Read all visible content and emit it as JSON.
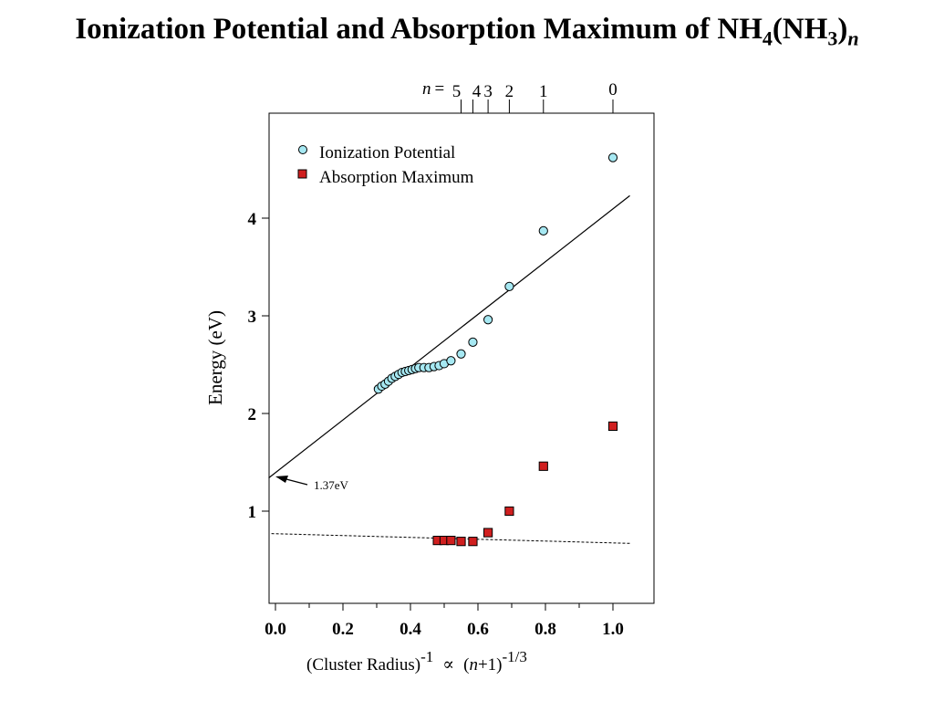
{
  "title": {
    "main": "Ionization Potential and Absorption Maximum of NH",
    "sub1": "4",
    "mid": "(NH",
    "sub2": "3",
    "close": ")",
    "sub3": "n"
  },
  "chart_data": {
    "type": "scatter",
    "x_axis": {
      "label_main": "(Cluster Radius)",
      "label_exp": "-1",
      "label_prop": "∝",
      "label_paren_open": "(",
      "label_n": "n",
      "label_plus": "+1)",
      "label_exp2": "-1/3",
      "lim": [
        -0.02,
        1.12
      ],
      "ticks": [
        0.0,
        0.2,
        0.4,
        0.6,
        0.8,
        1.0
      ],
      "tick_labels": [
        "0.0",
        "0.2",
        "0.4",
        "0.6",
        "0.8",
        "1.0"
      ]
    },
    "y_axis": {
      "label": "Energy (eV)",
      "lim": [
        0.0,
        5.1
      ],
      "ticks": [
        1,
        2,
        3,
        4
      ],
      "tick_labels": [
        "1",
        "2",
        "3",
        "4"
      ]
    },
    "top_axis": {
      "prefix_n": "n",
      "prefix_eq": "=",
      "ticks": [
        {
          "n": "0",
          "x": 1.0
        },
        {
          "n": "1",
          "x": 0.794
        },
        {
          "n": "2",
          "x": 0.693
        },
        {
          "n": "3",
          "x": 0.63
        },
        {
          "n": "4",
          "x": 0.585
        },
        {
          "n": "5",
          "x": 0.55
        }
      ],
      "label_text": "54  3    2      1"
    },
    "series": [
      {
        "name": "Ionization Potential",
        "marker": "circle",
        "color": "#a6e8f2",
        "x": [
          0.305,
          0.315,
          0.325,
          0.335,
          0.345,
          0.355,
          0.365,
          0.375,
          0.385,
          0.395,
          0.405,
          0.415,
          0.425,
          0.44,
          0.455,
          0.47,
          0.485,
          0.5,
          0.52,
          0.55,
          0.585,
          0.63,
          0.693,
          0.794,
          1.0
        ],
        "y": [
          2.25,
          2.28,
          2.3,
          2.33,
          2.36,
          2.38,
          2.4,
          2.42,
          2.43,
          2.44,
          2.45,
          2.46,
          2.47,
          2.47,
          2.47,
          2.48,
          2.49,
          2.51,
          2.54,
          2.61,
          2.73,
          2.96,
          3.3,
          3.87,
          4.62
        ]
      },
      {
        "name": "Absorption Maximum",
        "marker": "square",
        "color": "#d01f1f",
        "x": [
          0.48,
          0.5,
          0.52,
          0.55,
          0.585,
          0.63,
          0.693,
          0.794,
          1.0
        ],
        "y": [
          0.7,
          0.7,
          0.7,
          0.69,
          0.69,
          0.78,
          1.0,
          1.46,
          1.87
        ]
      }
    ],
    "fit_line": {
      "x": [
        -0.02,
        1.05
      ],
      "y": [
        1.34,
        4.23
      ]
    },
    "dashed_line": {
      "x": [
        -0.02,
        1.05
      ],
      "y": [
        0.77,
        0.67
      ]
    },
    "annotation": {
      "text": "1.37eV",
      "x": 0.0,
      "y": 1.34
    },
    "legend_position": "top-left",
    "grid": false
  }
}
